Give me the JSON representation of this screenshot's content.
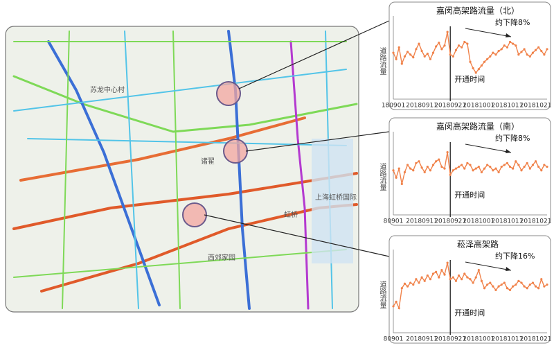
{
  "chart_data": [
    {
      "type": "line",
      "title": "嘉闵高架路流量（北）",
      "annotation": "约下降8%",
      "y_label": "道路流量",
      "event_label": "开通时间",
      "event_index": 20,
      "color": "#f0824a",
      "ylim": [
        30,
        95
      ],
      "categories": [
        "180901",
        null,
        null,
        null,
        null,
        null,
        null,
        null,
        null,
        null,
        "20180911",
        null,
        null,
        null,
        null,
        null,
        null,
        null,
        null,
        null,
        "20180921",
        null,
        null,
        null,
        null,
        null,
        null,
        null,
        null,
        null,
        "20181001",
        null,
        null,
        null,
        null,
        null,
        null,
        null,
        null,
        null,
        "20181011",
        null,
        null,
        null,
        null,
        null,
        null,
        null,
        null,
        null,
        "20181021",
        null,
        null,
        null,
        null
      ],
      "values": [
        62,
        55,
        68,
        50,
        58,
        63,
        60,
        57,
        66,
        72,
        64,
        58,
        61,
        55,
        62,
        69,
        73,
        66,
        70,
        85,
        60,
        58,
        65,
        70,
        68,
        74,
        72,
        52,
        45,
        40,
        44,
        48,
        52,
        55,
        58,
        62,
        60,
        64,
        66,
        70,
        68,
        74,
        72,
        70,
        60,
        63,
        66,
        60,
        58,
        62,
        65,
        68,
        64,
        60,
        66
      ]
    },
    {
      "type": "line",
      "title": "嘉闵高架路流量（南）",
      "annotation": "约下降8%",
      "y_label": "道路流量",
      "event_label": "开通时间",
      "event_index": 20,
      "color": "#f0824a",
      "ylim": [
        30,
        95
      ],
      "categories": [
        "80901",
        null,
        null,
        null,
        null,
        null,
        null,
        null,
        null,
        null,
        "20180911",
        null,
        null,
        null,
        null,
        null,
        null,
        null,
        null,
        null,
        "20180921",
        null,
        null,
        null,
        null,
        null,
        null,
        null,
        null,
        null,
        "20181001",
        null,
        null,
        null,
        null,
        null,
        null,
        null,
        null,
        null,
        "20181011",
        null,
        null,
        null,
        null,
        null,
        null,
        null,
        null,
        null,
        "20181021",
        null,
        null,
        null,
        null
      ],
      "values": [
        60,
        52,
        62,
        45,
        58,
        66,
        62,
        60,
        68,
        70,
        63,
        58,
        64,
        60,
        66,
        70,
        72,
        64,
        62,
        80,
        55,
        60,
        62,
        64,
        66,
        62,
        68,
        66,
        60,
        62,
        64,
        58,
        62,
        66,
        64,
        60,
        62,
        58,
        64,
        66,
        68,
        64,
        62,
        70,
        66,
        60,
        64,
        68,
        62,
        66,
        70,
        64,
        60,
        66,
        64
      ]
    },
    {
      "type": "line",
      "title": "菘泽高架路",
      "annotation": "约下降16%",
      "y_label": "道路流量",
      "event_label": "开通时间",
      "event_index": 20,
      "color": "#f0824a",
      "ylim": [
        30,
        95
      ],
      "categories": [
        "80901",
        null,
        null,
        null,
        null,
        null,
        null,
        null,
        null,
        null,
        "20180911",
        null,
        null,
        null,
        null,
        null,
        null,
        null,
        null,
        null,
        "20180921",
        null,
        null,
        null,
        null,
        null,
        null,
        null,
        null,
        null,
        "20181001",
        null,
        null,
        null,
        null,
        null,
        null,
        null,
        null,
        null,
        "20181011",
        null,
        null,
        null,
        null,
        null,
        null,
        null,
        null,
        null,
        "20181021",
        null,
        null,
        null,
        null
      ],
      "values": [
        40,
        45,
        38,
        60,
        65,
        62,
        66,
        64,
        70,
        66,
        72,
        68,
        74,
        70,
        76,
        78,
        72,
        80,
        75,
        88,
        70,
        72,
        68,
        74,
        70,
        76,
        72,
        70,
        66,
        72,
        80,
        68,
        60,
        64,
        66,
        62,
        58,
        62,
        64,
        66,
        60,
        58,
        62,
        64,
        68,
        66,
        62,
        60,
        64,
        66,
        62,
        60,
        70,
        62,
        64
      ]
    }
  ],
  "map": {
    "labels": [
      "苏龙中心村",
      "诸翟",
      "西郊家园",
      "上海虹桥国际",
      "虹桥"
    ]
  }
}
